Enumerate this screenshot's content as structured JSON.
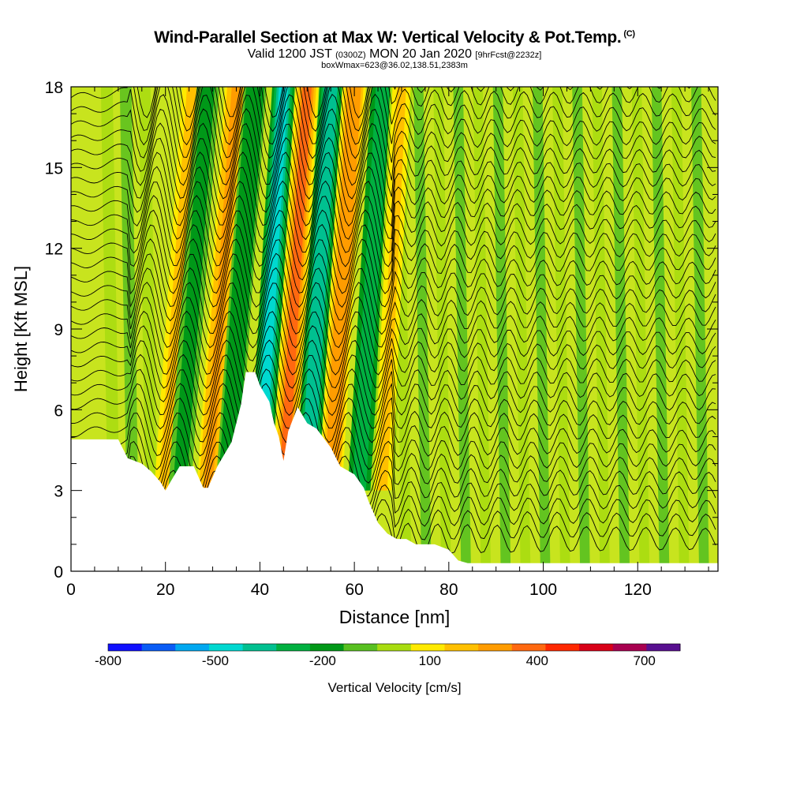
{
  "header": {
    "title": "Wind-Parallel Section at Max W: Vertical Velocity & Pot.Temp.",
    "title_tag": "(C)",
    "subtitle_a": "Valid 1200 JST",
    "subtitle_b": "(0300Z)",
    "subtitle_c": "MON 20 Jan 2020",
    "subtitle_d": "[9hrFcst@2232z]",
    "boxline": "boxWmax=623@36.02,138.51,2383m"
  },
  "chart_data": {
    "type": "heatmap",
    "xlabel": "Distance [nm]",
    "ylabel": "Height [Kft MSL]",
    "xlim": [
      0,
      137
    ],
    "ylim": [
      0,
      18
    ],
    "xticks": [
      0,
      20,
      40,
      60,
      80,
      100,
      120
    ],
    "yticks": [
      0,
      3,
      6,
      9,
      12,
      15,
      18
    ],
    "terrain_height_kft": [
      [
        0,
        4.9
      ],
      [
        10,
        4.9
      ],
      [
        12,
        4.2
      ],
      [
        15,
        4.0
      ],
      [
        17,
        3.7
      ],
      [
        19,
        3.3
      ],
      [
        20,
        3.0
      ],
      [
        21,
        3.3
      ],
      [
        23,
        3.9
      ],
      [
        26,
        3.9
      ],
      [
        28,
        3.1
      ],
      [
        29,
        3.1
      ],
      [
        31,
        3.9
      ],
      [
        34,
        4.8
      ],
      [
        36,
        6.2
      ],
      [
        37,
        7.4
      ],
      [
        39,
        7.4
      ],
      [
        40,
        6.9
      ],
      [
        42,
        6.3
      ],
      [
        43,
        5.5
      ],
      [
        44,
        5.0
      ],
      [
        45,
        4.1
      ],
      [
        46,
        5.2
      ],
      [
        48,
        6.1
      ],
      [
        50,
        5.5
      ],
      [
        52,
        5.3
      ],
      [
        55,
        4.6
      ],
      [
        57,
        3.9
      ],
      [
        60,
        3.6
      ],
      [
        62,
        3.1
      ],
      [
        63,
        2.6
      ],
      [
        65,
        1.8
      ],
      [
        67,
        1.4
      ],
      [
        69,
        1.2
      ],
      [
        71,
        1.2
      ],
      [
        73,
        1.0
      ],
      [
        77,
        1.0
      ],
      [
        80,
        0.8
      ],
      [
        82,
        0.4
      ],
      [
        84,
        0.3
      ],
      [
        137,
        0.3
      ]
    ],
    "colorbar": {
      "label": "Vertical Velocity [cm/s]",
      "tick_labels": [
        "-800",
        "-500",
        "-200",
        "100",
        "400",
        "700"
      ],
      "tick_values": [
        -800,
        -500,
        -200,
        100,
        400,
        700
      ],
      "levels": [
        -800,
        -700,
        -600,
        -500,
        -400,
        -300,
        -200,
        -100,
        0,
        100,
        200,
        300,
        400,
        500,
        600,
        700,
        800
      ],
      "colors": [
        "#1010ff",
        "#0a5cf5",
        "#00a8f0",
        "#00d8d0",
        "#00c090",
        "#00b040",
        "#009818",
        "#58c020",
        "#a8dc10",
        "#ffea00",
        "#ffc000",
        "#ff9c00",
        "#ff6810",
        "#ff2800",
        "#d80018",
        "#a80050",
        "#581090"
      ]
    },
    "vertical_velocity_bands": [
      {
        "x": 20,
        "w_cm_s": 350,
        "tilt_nm": 6
      },
      {
        "x": 23,
        "w_cm_s": -150,
        "tilt_nm": 6
      },
      {
        "x": 29,
        "w_cm_s": 400,
        "tilt_nm": 6
      },
      {
        "x": 33,
        "w_cm_s": -200,
        "tilt_nm": 6
      },
      {
        "x": 40,
        "w_cm_s": -500,
        "tilt_nm": 5
      },
      {
        "x": 45,
        "w_cm_s": 550,
        "tilt_nm": 5
      },
      {
        "x": 50,
        "w_cm_s": -450,
        "tilt_nm": 5
      },
      {
        "x": 55,
        "w_cm_s": 450,
        "tilt_nm": 5
      },
      {
        "x": 61,
        "w_cm_s": -350,
        "tilt_nm": 5
      },
      {
        "x": 66,
        "w_cm_s": 250,
        "tilt_nm": 4
      }
    ]
  }
}
